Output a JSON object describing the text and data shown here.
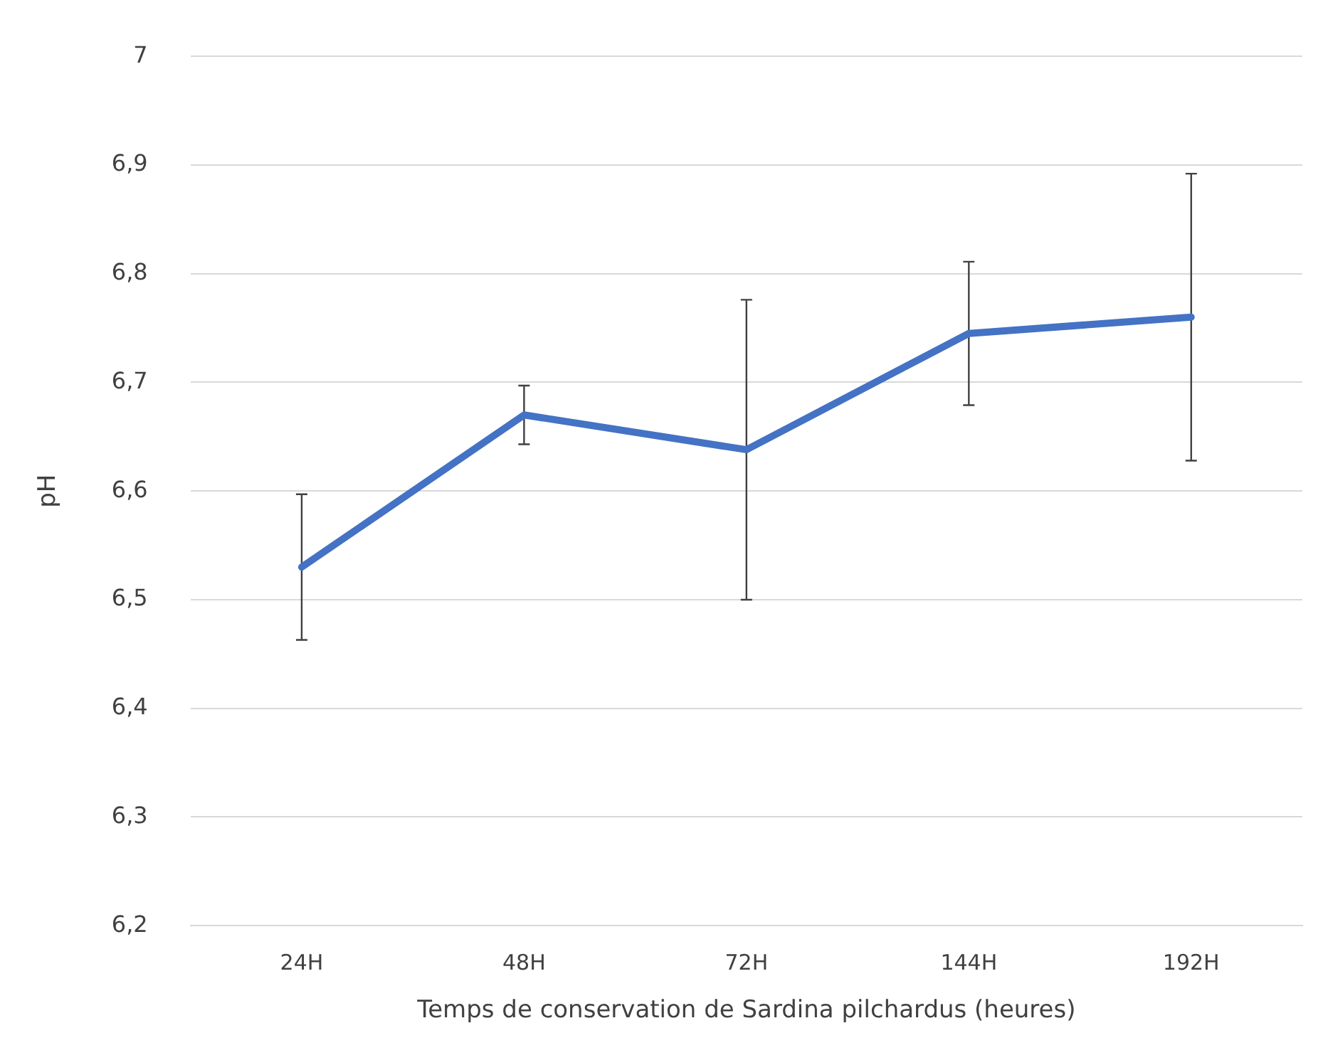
{
  "chart_data": {
    "type": "line",
    "xlabel": "Temps de conservation de Sardina pilchardus (heures)",
    "ylabel": "pH",
    "categories": [
      "24H",
      "48H",
      "72H",
      "144H",
      "192H"
    ],
    "series": [
      {
        "color": "#4472c4",
        "values": [
          6.53,
          6.67,
          6.638,
          6.745,
          6.76
        ],
        "errors": [
          0.067,
          0.027,
          0.138,
          0.066,
          0.132
        ]
      }
    ],
    "ylim": [
      6.2,
      7
    ],
    "yticks": [
      {
        "value": 6.2,
        "label": "6,2"
      },
      {
        "value": 6.3,
        "label": "6,3"
      },
      {
        "value": 6.4,
        "label": "6,4"
      },
      {
        "value": 6.5,
        "label": "6,5"
      },
      {
        "value": 6.6,
        "label": "6,6"
      },
      {
        "value": 6.7,
        "label": "6,7"
      },
      {
        "value": 6.8,
        "label": "6,8"
      },
      {
        "value": 6.9,
        "label": "6,9"
      },
      {
        "value": 7,
        "label": "7"
      }
    ],
    "grid": "y",
    "legend": false,
    "marker": "none",
    "line_style": "solid"
  }
}
